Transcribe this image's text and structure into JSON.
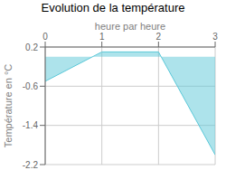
{
  "chart_data": {
    "type": "area",
    "title": "Evolution de la température",
    "xlabel": "heure par heure",
    "ylabel": "Température en °C",
    "x": [
      0,
      1,
      2,
      3
    ],
    "values": [
      -0.5,
      0.1,
      0.1,
      -2.0
    ],
    "color": "#5bc8d8",
    "xlim": [
      0,
      3
    ],
    "ylim": [
      -2.2,
      0.2
    ],
    "xticks": [
      0,
      1,
      2,
      3
    ],
    "yticks": [
      0.2,
      -0.6,
      -1.4,
      -2.2
    ],
    "grid": true
  }
}
